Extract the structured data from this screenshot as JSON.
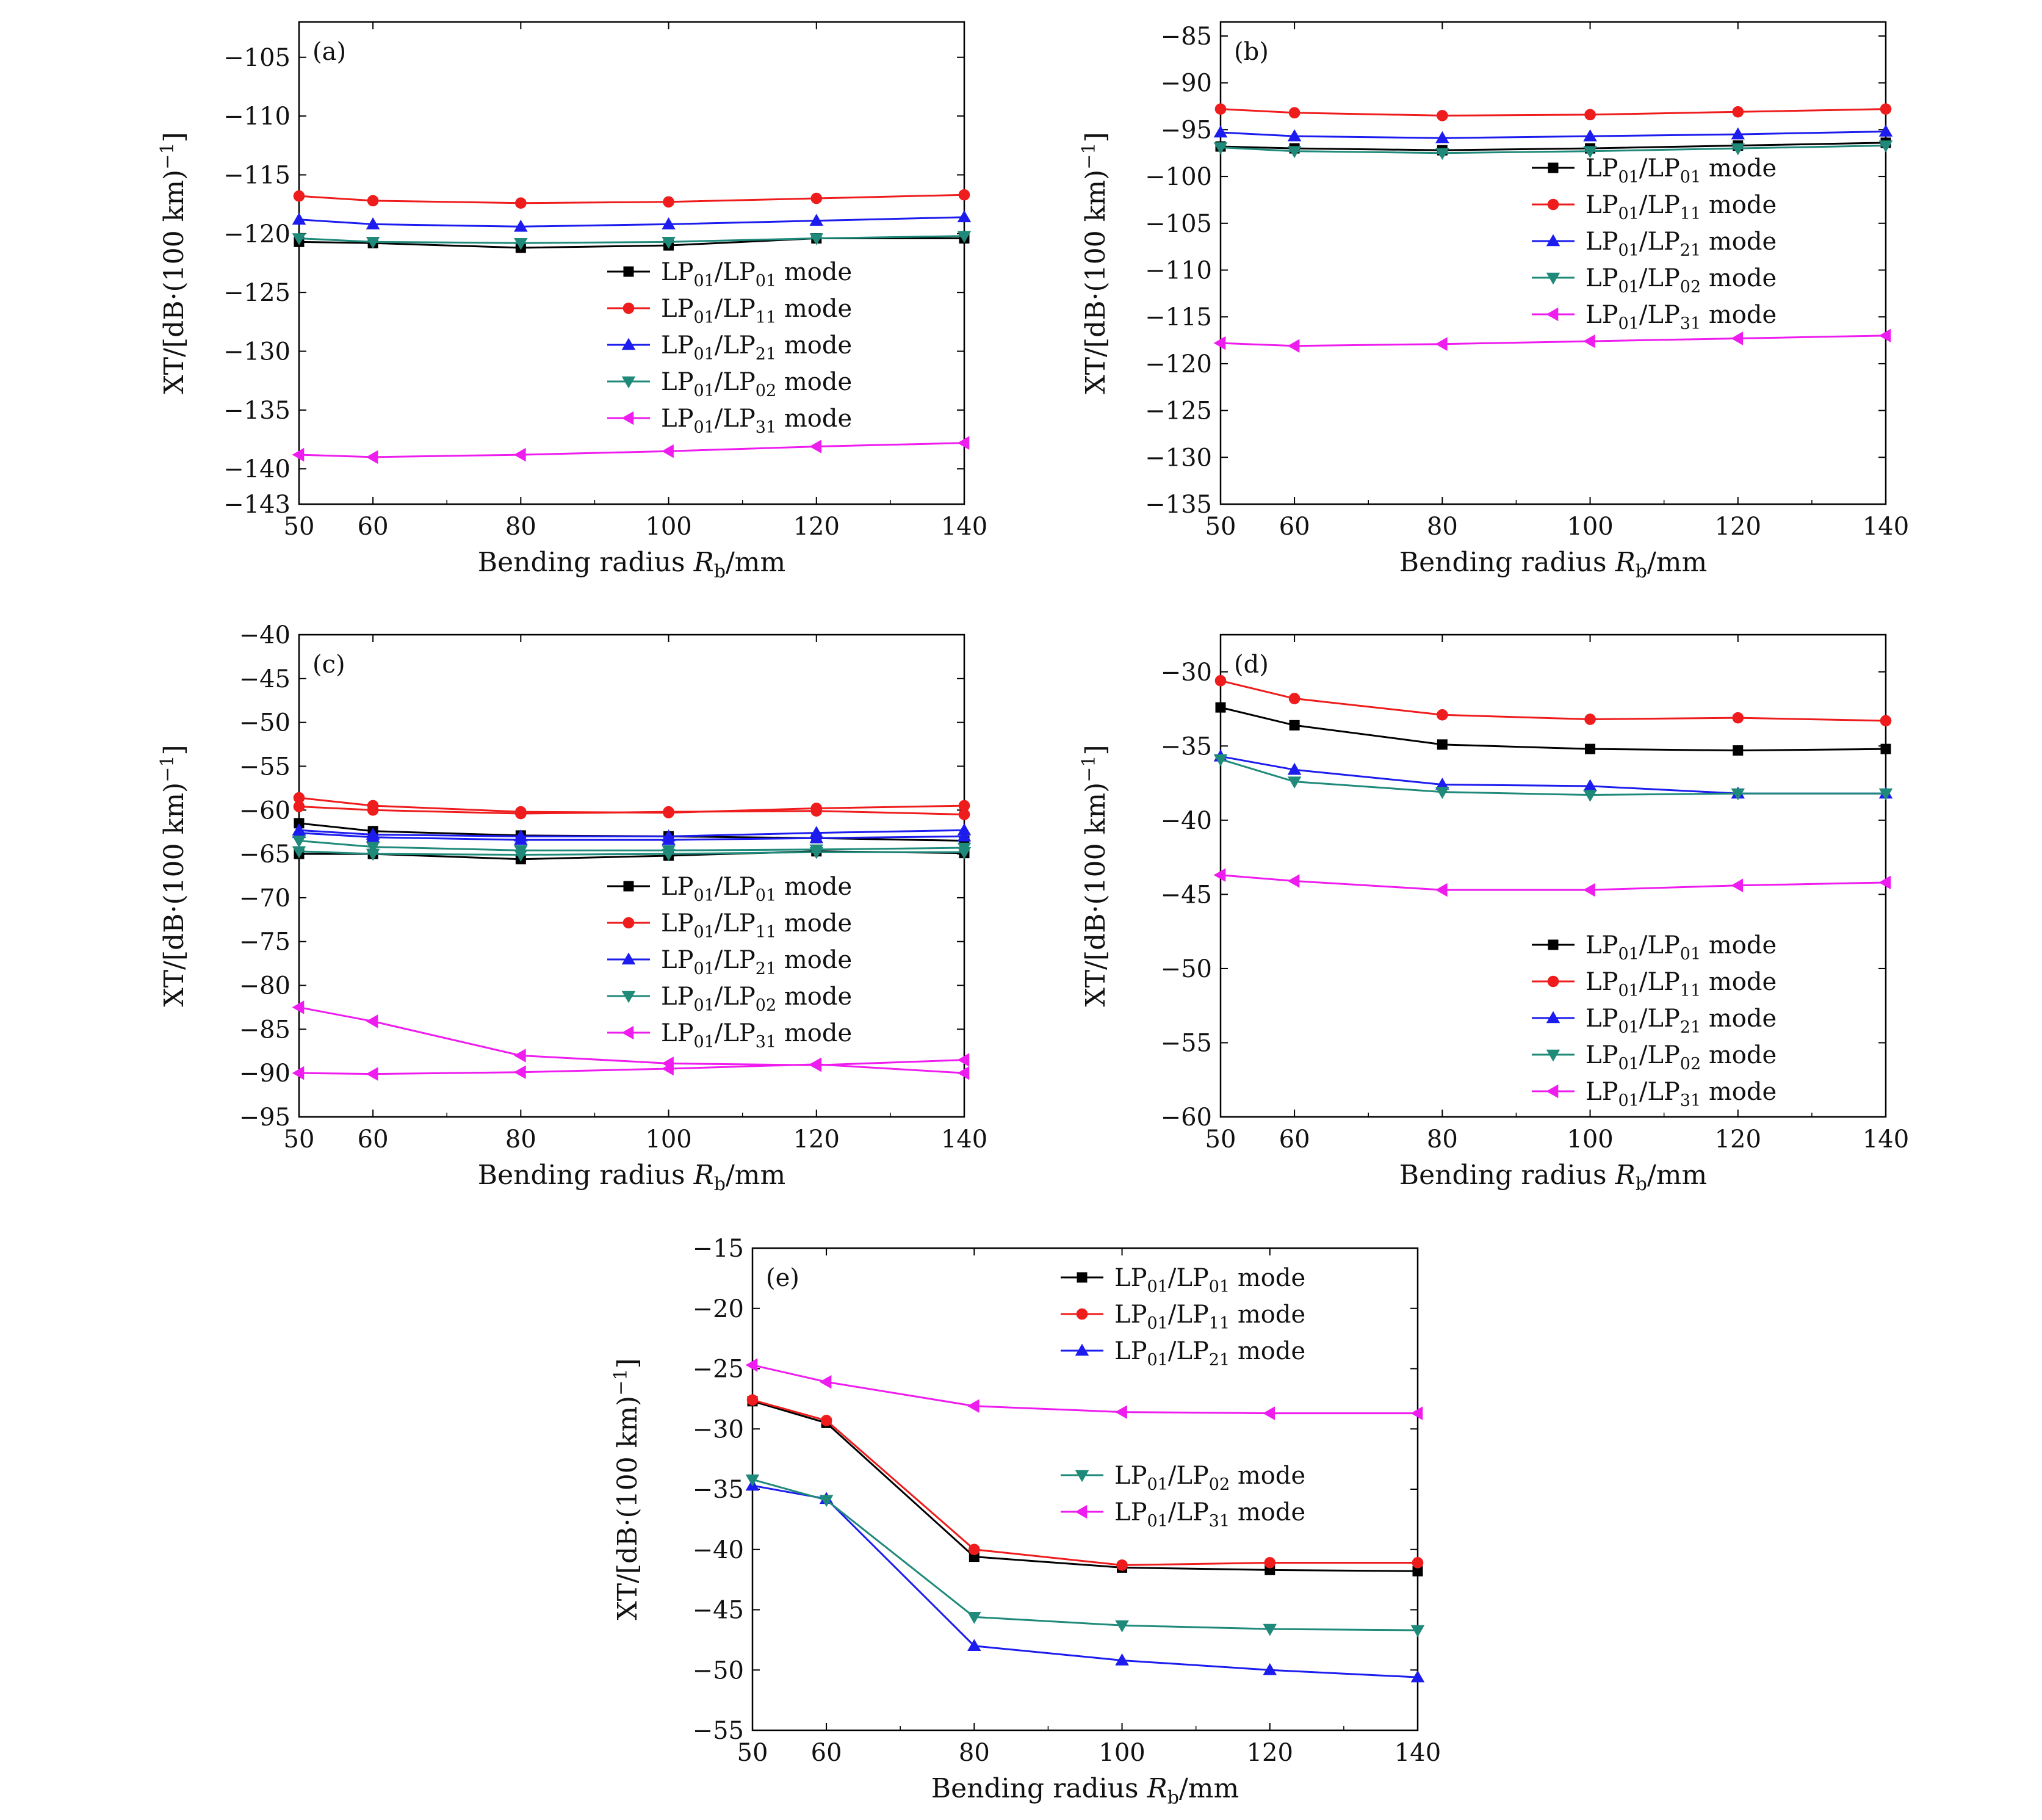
{
  "chart_data": [
    {
      "type": "line",
      "panel_label": "(a)",
      "xlabel": "Bending radius",
      "xlabel_symbol": "R",
      "xlabel_sub": "b",
      "xlabel_unit": "/mm",
      "ylabel_main": "XT/[dB·(100 km)",
      "ylabel_sup": "−1",
      "ylabel_close": "]",
      "xlim": [
        50,
        140
      ],
      "ylim": [
        -143,
        -102
      ],
      "x": [
        50,
        60,
        80,
        100,
        120,
        140
      ],
      "x_ticks": [
        "50",
        "60",
        "80",
        "100",
        "120",
        "140"
      ],
      "y_ticks": [
        -105,
        -110,
        -115,
        -120,
        -125,
        -130,
        -135,
        -140,
        -143
      ],
      "y_tick_labels": [
        "−105",
        "−110",
        "−115",
        "−120",
        "−125",
        "−130",
        "−135",
        "−140",
        "−143"
      ],
      "legend_position": "center-right",
      "series": [
        {
          "name": "LP01/LP01 mode",
          "legend_main": "LP",
          "legend_sub1": "01",
          "legend_mid": "/LP",
          "legend_sub2": "01",
          "legend_end": " mode",
          "color": "#000000",
          "marker": "square",
          "values": [
            -120.7,
            -120.8,
            -121.2,
            -121.0,
            -120.4,
            -120.4
          ]
        },
        {
          "name": "LP01/LP11 mode",
          "legend_main": "LP",
          "legend_sub1": "01",
          "legend_mid": "/LP",
          "legend_sub2": "11",
          "legend_end": " mode",
          "color": "#ee1c1c",
          "marker": "circle",
          "values": [
            -116.8,
            -117.2,
            -117.4,
            -117.3,
            -117.0,
            -116.7
          ]
        },
        {
          "name": "LP01/LP21 mode",
          "legend_main": "LP",
          "legend_sub1": "01",
          "legend_mid": "/LP",
          "legend_sub2": "21",
          "legend_end": " mode",
          "color": "#1c1cee",
          "marker": "triangle-up",
          "values": [
            -118.8,
            -119.2,
            -119.4,
            -119.2,
            -118.9,
            -118.6
          ]
        },
        {
          "name": "LP01/LP02 mode",
          "legend_main": "LP",
          "legend_sub1": "01",
          "legend_mid": "/LP",
          "legend_sub2": "02",
          "legend_end": " mode",
          "color": "#1f8a7a",
          "marker": "triangle-down",
          "values": [
            -120.4,
            -120.7,
            -120.8,
            -120.7,
            -120.4,
            -120.2
          ]
        },
        {
          "name": "LP01/LP31 mode",
          "legend_main": "LP",
          "legend_sub1": "01",
          "legend_mid": "/LP",
          "legend_sub2": "31",
          "legend_end": " mode",
          "color": "#ee1cee",
          "marker": "triangle-left",
          "values": [
            -138.8,
            -139.0,
            -138.8,
            -138.5,
            -138.1,
            -137.8
          ]
        }
      ]
    },
    {
      "type": "line",
      "panel_label": "(b)",
      "xlabel": "Bending radius",
      "xlabel_symbol": "R",
      "xlabel_sub": "b",
      "xlabel_unit": "/mm",
      "ylabel_main": "XT/[dB·(100 km)",
      "ylabel_sup": "−1",
      "ylabel_close": "]",
      "xlim": [
        50,
        140
      ],
      "ylim": [
        -135,
        -83.5
      ],
      "x": [
        50,
        60,
        80,
        100,
        120,
        140
      ],
      "x_ticks": [
        "50",
        "60",
        "80",
        "100",
        "120",
        "140"
      ],
      "y_ticks": [
        -85,
        -90,
        -95,
        -100,
        -105,
        -110,
        -115,
        -120,
        -125,
        -130,
        -135
      ],
      "y_tick_labels": [
        "−85",
        "−90",
        "−95",
        "−100",
        "−105",
        "−110",
        "−115",
        "−120",
        "−125",
        "−130",
        "−135"
      ],
      "legend_position": "upper-right",
      "series": [
        {
          "name": "LP01/LP01 mode",
          "legend_main": "LP",
          "legend_sub1": "01",
          "legend_mid": "/LP",
          "legend_sub2": "01",
          "legend_end": " mode",
          "color": "#000000",
          "marker": "square",
          "values": [
            -96.8,
            -97.0,
            -97.2,
            -97.0,
            -96.7,
            -96.4
          ]
        },
        {
          "name": "LP01/LP11 mode",
          "legend_main": "LP",
          "legend_sub1": "01",
          "legend_mid": "/LP",
          "legend_sub2": "11",
          "legend_end": " mode",
          "color": "#ee1c1c",
          "marker": "circle",
          "values": [
            -92.8,
            -93.2,
            -93.5,
            -93.4,
            -93.1,
            -92.8
          ]
        },
        {
          "name": "LP01/LP21 mode",
          "legend_main": "LP",
          "legend_sub1": "01",
          "legend_mid": "/LP",
          "legend_sub2": "21",
          "legend_end": " mode",
          "color": "#1c1cee",
          "marker": "triangle-up",
          "values": [
            -95.3,
            -95.7,
            -95.9,
            -95.7,
            -95.5,
            -95.2
          ]
        },
        {
          "name": "LP01/LP02 mode",
          "legend_main": "LP",
          "legend_sub1": "01",
          "legend_mid": "/LP",
          "legend_sub2": "02",
          "legend_end": " mode",
          "color": "#1f8a7a",
          "marker": "triangle-down",
          "values": [
            -96.9,
            -97.3,
            -97.5,
            -97.3,
            -97.0,
            -96.7
          ]
        },
        {
          "name": "LP01/LP31 mode",
          "legend_main": "LP",
          "legend_sub1": "01",
          "legend_mid": "/LP",
          "legend_sub2": "31",
          "legend_end": " mode",
          "color": "#ee1cee",
          "marker": "triangle-left",
          "values": [
            -117.8,
            -118.1,
            -117.9,
            -117.6,
            -117.3,
            -117.0
          ]
        }
      ]
    },
    {
      "type": "line",
      "panel_label": "(c)",
      "xlabel": "Bending radius",
      "xlabel_symbol": "R",
      "xlabel_sub": "b",
      "xlabel_unit": "/mm",
      "ylabel_main": "XT/[dB·(100 km)",
      "ylabel_sup": "−1",
      "ylabel_close": "]",
      "xlim": [
        50,
        140
      ],
      "ylim": [
        -95,
        -40
      ],
      "x": [
        50,
        60,
        80,
        100,
        120,
        140
      ],
      "x_ticks": [
        "50",
        "60",
        "80",
        "100",
        "120",
        "140"
      ],
      "y_ticks": [
        -40,
        -45,
        -50,
        -55,
        -60,
        -65,
        -70,
        -75,
        -80,
        -85,
        -90,
        -95
      ],
      "y_tick_labels": [
        "−40",
        "−45",
        "−50",
        "−55",
        "−60",
        "−65",
        "−70",
        "−75",
        "−80",
        "−85",
        "−90",
        "−95"
      ],
      "legend_position": "center-right",
      "series": [
        {
          "name": "LP01/LP01 mode",
          "legend_main": "LP",
          "legend_sub1": "01",
          "legend_mid": "/LP",
          "legend_sub2": "01",
          "legend_end": " mode",
          "color": "#000000",
          "marker": "square",
          "values": [
            -61.5,
            -62.4,
            -62.9,
            -63.0,
            -63.2,
            -63.5
          ]
        },
        {
          "name": "LP01/LP01 mode (set 2)",
          "legend": false,
          "color": "#000000",
          "marker": "square",
          "values": [
            -65.0,
            -65.0,
            -65.6,
            -65.2,
            -64.7,
            -64.9
          ]
        },
        {
          "name": "LP01/LP11 mode",
          "legend_main": "LP",
          "legend_sub1": "01",
          "legend_mid": "/LP",
          "legend_sub2": "11",
          "legend_end": " mode",
          "color": "#ee1c1c",
          "marker": "circle",
          "values": [
            -58.6,
            -59.5,
            -60.2,
            -60.3,
            -59.8,
            -59.5
          ]
        },
        {
          "name": "LP01/LP11 mode (set 2)",
          "legend": false,
          "color": "#ee1c1c",
          "marker": "circle",
          "values": [
            -59.6,
            -60.0,
            -60.4,
            -60.2,
            -60.1,
            -60.5
          ]
        },
        {
          "name": "LP01/LP21 mode",
          "legend_main": "LP",
          "legend_sub1": "01",
          "legend_mid": "/LP",
          "legend_sub2": "21",
          "legend_end": " mode",
          "color": "#1c1cee",
          "marker": "triangle-up",
          "values": [
            -62.3,
            -62.8,
            -63.0,
            -63.0,
            -62.6,
            -62.3
          ]
        },
        {
          "name": "LP01/LP21 mode (set 2)",
          "legend": false,
          "color": "#1c1cee",
          "marker": "triangle-up",
          "values": [
            -62.6,
            -63.1,
            -63.4,
            -63.4,
            -63.2,
            -63.0
          ]
        },
        {
          "name": "LP01/LP02 mode",
          "legend_main": "LP",
          "legend_sub1": "01",
          "legend_mid": "/LP",
          "legend_sub2": "02",
          "legend_end": " mode",
          "color": "#1f8a7a",
          "marker": "triangle-down",
          "values": [
            -63.5,
            -64.2,
            -64.6,
            -64.6,
            -64.5,
            -64.3
          ]
        },
        {
          "name": "LP01/LP02 mode (set 2)",
          "legend": false,
          "color": "#1f8a7a",
          "marker": "triangle-down",
          "values": [
            -64.7,
            -65.0,
            -65.1,
            -65.0,
            -64.8,
            -64.8
          ]
        },
        {
          "name": "LP01/LP31 mode",
          "legend_main": "LP",
          "legend_sub1": "01",
          "legend_mid": "/LP",
          "legend_sub2": "31",
          "legend_end": " mode",
          "color": "#ee1cee",
          "marker": "triangle-left",
          "values": [
            -82.5,
            -84.1,
            -88.0,
            -88.9,
            -89.1,
            -88.5
          ]
        },
        {
          "name": "LP01/LP31 mode (set 2)",
          "legend": false,
          "color": "#ee1cee",
          "marker": "triangle-left",
          "values": [
            -90.0,
            -90.1,
            -89.9,
            -89.5,
            -89.0,
            -90.0
          ]
        }
      ]
    },
    {
      "type": "line",
      "panel_label": "(d)",
      "xlabel": "Bending radius",
      "xlabel_symbol": "R",
      "xlabel_sub": "b",
      "xlabel_unit": "/mm",
      "ylabel_main": "XT/[dB·(100 km)",
      "ylabel_sup": "−1",
      "ylabel_close": "]",
      "xlim": [
        50,
        140
      ],
      "ylim": [
        -60,
        -27.5
      ],
      "x": [
        50,
        60,
        80,
        100,
        120,
        140
      ],
      "x_ticks": [
        "50",
        "60",
        "80",
        "100",
        "120",
        "140"
      ],
      "y_ticks": [
        -30,
        -35,
        -40,
        -45,
        -50,
        -55,
        -60
      ],
      "y_tick_labels": [
        "−30",
        "−35",
        "−40",
        "−45",
        "−50",
        "−55",
        "−60"
      ],
      "legend_position": "lower-right",
      "series": [
        {
          "name": "LP01/LP01 mode",
          "legend_main": "LP",
          "legend_sub1": "01",
          "legend_mid": "/LP",
          "legend_sub2": "01",
          "legend_end": " mode",
          "color": "#000000",
          "marker": "square",
          "values": [
            -32.4,
            -33.6,
            -34.9,
            -35.2,
            -35.3,
            -35.2
          ]
        },
        {
          "name": "LP01/LP11 mode",
          "legend_main": "LP",
          "legend_sub1": "01",
          "legend_mid": "/LP",
          "legend_sub2": "11",
          "legend_end": " mode",
          "color": "#ee1c1c",
          "marker": "circle",
          "values": [
            -30.6,
            -31.8,
            -32.9,
            -33.2,
            -33.1,
            -33.3
          ]
        },
        {
          "name": "LP01/LP21 mode",
          "legend_main": "LP",
          "legend_sub1": "01",
          "legend_mid": "/LP",
          "legend_sub2": "21",
          "legend_end": " mode",
          "color": "#1c1cee",
          "marker": "triangle-up",
          "values": [
            -35.7,
            -36.6,
            -37.6,
            -37.7,
            -38.2,
            -38.2
          ]
        },
        {
          "name": "LP01/LP02 mode",
          "legend_main": "LP",
          "legend_sub1": "01",
          "legend_mid": "/LP",
          "legend_sub2": "02",
          "legend_end": " mode",
          "color": "#1f8a7a",
          "marker": "triangle-down",
          "values": [
            -35.9,
            -37.4,
            -38.1,
            -38.3,
            -38.2,
            -38.2
          ]
        },
        {
          "name": "LP01/LP31 mode",
          "legend_main": "LP",
          "legend_sub1": "01",
          "legend_mid": "/LP",
          "legend_sub2": "31",
          "legend_end": " mode",
          "color": "#ee1cee",
          "marker": "triangle-left",
          "values": [
            -43.7,
            -44.1,
            -44.7,
            -44.7,
            -44.4,
            -44.2
          ]
        }
      ]
    },
    {
      "type": "line",
      "panel_label": "(e)",
      "xlabel": "Bending radius",
      "xlabel_symbol": "R",
      "xlabel_sub": "b",
      "xlabel_unit": "/mm",
      "ylabel_main": "XT/[dB·(100 km)",
      "ylabel_sup": "−1",
      "ylabel_close": "]",
      "xlim": [
        50,
        140
      ],
      "ylim": [
        -55,
        -15
      ],
      "x": [
        50,
        60,
        80,
        100,
        120,
        140
      ],
      "x_ticks": [
        "50",
        "60",
        "80",
        "100",
        "120",
        "140"
      ],
      "y_ticks": [
        -15,
        -20,
        -25,
        -30,
        -35,
        -40,
        -45,
        -50,
        -55
      ],
      "y_tick_labels": [
        "−15",
        "−20",
        "−25",
        "−30",
        "−35",
        "−40",
        "−45",
        "−50",
        "−55"
      ],
      "legend_position": "upper-right (split)",
      "series": [
        {
          "name": "LP01/LP01 mode",
          "legend_main": "LP",
          "legend_sub1": "01",
          "legend_mid": "/LP",
          "legend_sub2": "01",
          "legend_end": " mode",
          "color": "#000000",
          "marker": "square",
          "values": [
            -27.7,
            -29.5,
            -40.6,
            -41.5,
            -41.7,
            -41.8
          ]
        },
        {
          "name": "LP01/LP11 mode",
          "legend_main": "LP",
          "legend_sub1": "01",
          "legend_mid": "/LP",
          "legend_sub2": "11",
          "legend_end": " mode",
          "color": "#ee1c1c",
          "marker": "circle",
          "values": [
            -27.6,
            -29.3,
            -40.0,
            -41.3,
            -41.1,
            -41.1
          ]
        },
        {
          "name": "LP01/LP21 mode",
          "legend_main": "LP",
          "legend_sub1": "01",
          "legend_mid": "/LP",
          "legend_sub2": "21",
          "legend_end": " mode",
          "color": "#1c1cee",
          "marker": "triangle-up",
          "values": [
            -34.7,
            -35.8,
            -48.0,
            -49.2,
            -50.0,
            -50.6
          ]
        },
        {
          "name": "LP01/LP02 mode",
          "legend_main": "LP",
          "legend_sub1": "01",
          "legend_mid": "/LP",
          "legend_sub2": "02",
          "legend_end": " mode",
          "color": "#1f8a7a",
          "marker": "triangle-down",
          "values": [
            -34.2,
            -35.9,
            -45.6,
            -46.3,
            -46.6,
            -46.7
          ]
        },
        {
          "name": "LP01/LP31 mode",
          "legend_main": "LP",
          "legend_sub1": "01",
          "legend_mid": "/LP",
          "legend_sub2": "31",
          "legend_end": " mode",
          "color": "#ee1cee",
          "marker": "triangle-left",
          "values": [
            -24.7,
            -26.1,
            -28.1,
            -28.6,
            -28.7,
            -28.7
          ]
        }
      ]
    }
  ]
}
